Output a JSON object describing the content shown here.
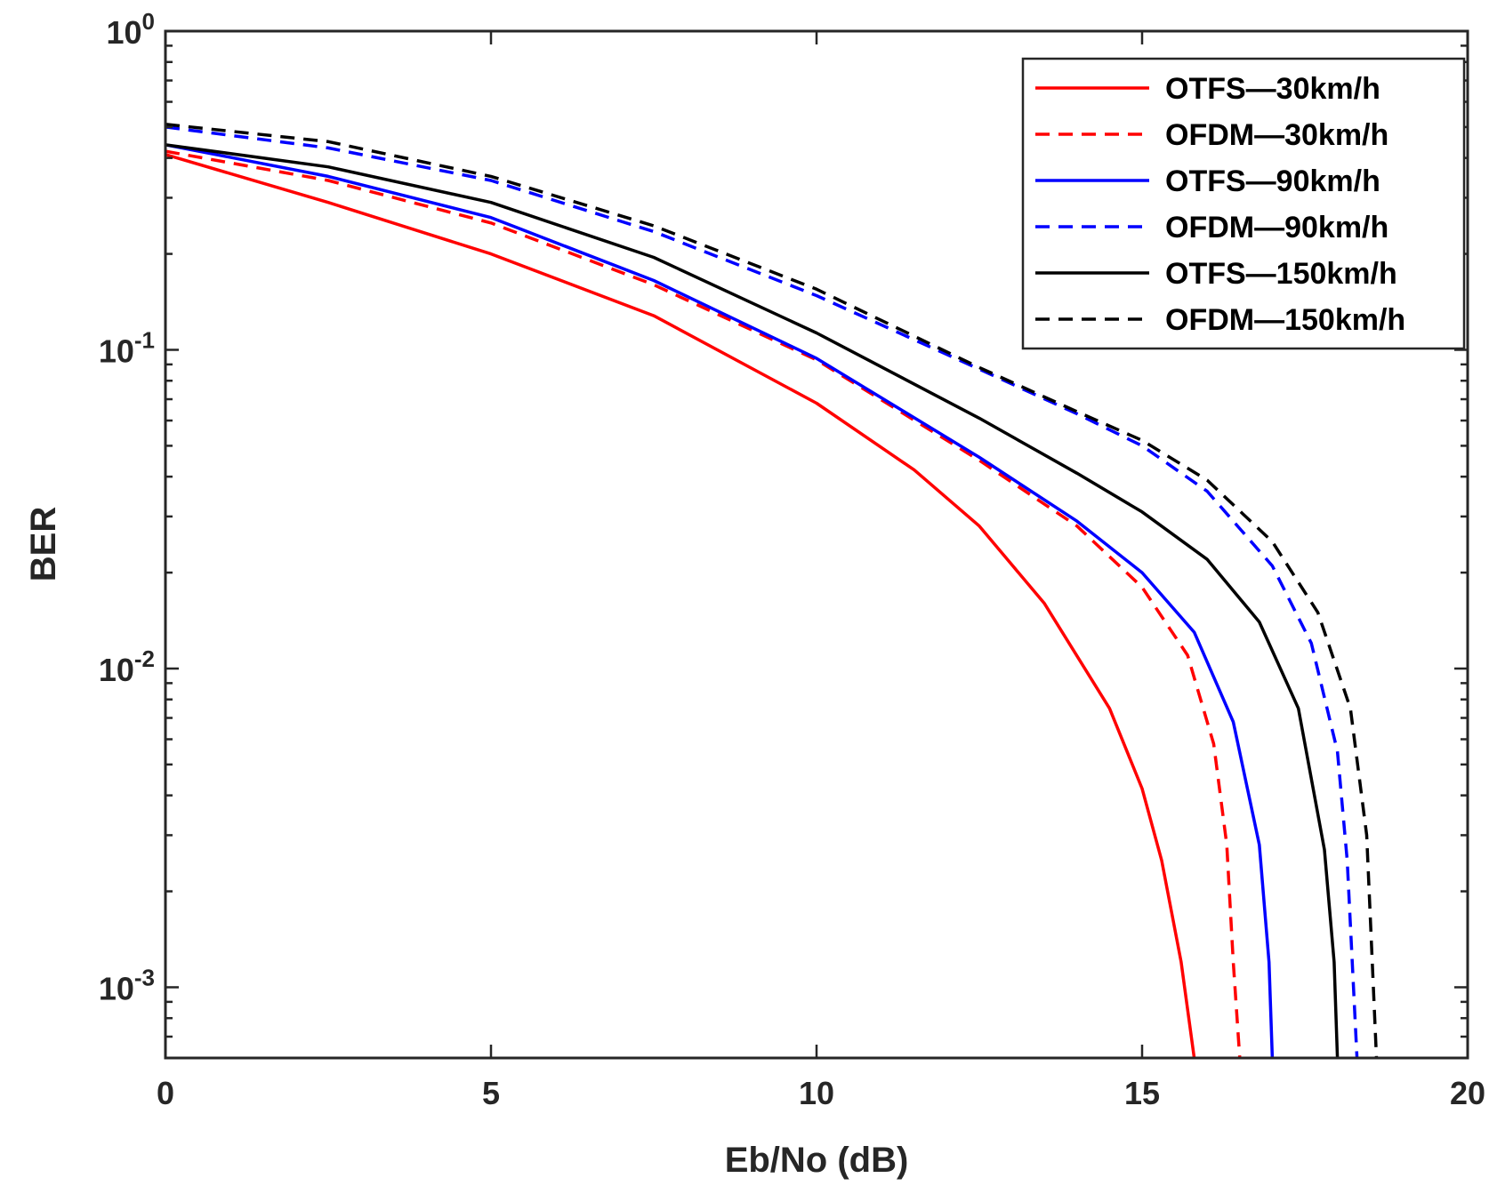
{
  "chart_data": {
    "type": "line",
    "title": "",
    "xlabel": "Eb/No (dB)",
    "ylabel": "BER",
    "xlim": [
      0,
      20
    ],
    "ylim": [
      0.0006,
      1
    ],
    "yscale": "log",
    "grid": false,
    "legend_position": "top-right",
    "x_ticks": [
      0,
      5,
      10,
      15,
      20
    ],
    "x_tick_labels": [
      "0",
      "5",
      "10",
      "15",
      "20"
    ],
    "y_ticks": [
      {
        "value": 1,
        "base": "10",
        "exp": "0"
      },
      {
        "value": 0.1,
        "base": "10",
        "exp": "-1"
      },
      {
        "value": 0.01,
        "base": "10",
        "exp": "-2"
      },
      {
        "value": 0.001,
        "base": "10",
        "exp": "-3"
      }
    ],
    "series": [
      {
        "name": "OTFS—30km/h",
        "color": "#ff0000",
        "dash": "solid",
        "x": [
          0,
          2.5,
          5,
          7.5,
          10,
          11.5,
          12.5,
          13.5,
          14.5,
          15,
          15.3,
          15.6,
          15.8
        ],
        "y": [
          0.41,
          0.29,
          0.2,
          0.128,
          0.068,
          0.042,
          0.028,
          0.016,
          0.0075,
          0.0042,
          0.0025,
          0.0012,
          0.0006
        ]
      },
      {
        "name": "OFDM—30km/h",
        "color": "#ff0000",
        "dash": "dashed",
        "x": [
          0,
          2.5,
          5,
          7.5,
          10,
          12.5,
          14,
          15,
          15.7,
          16.1,
          16.3,
          16.4,
          16.5
        ],
        "y": [
          0.42,
          0.34,
          0.25,
          0.16,
          0.093,
          0.045,
          0.028,
          0.018,
          0.011,
          0.0058,
          0.0028,
          0.0012,
          0.0006
        ]
      },
      {
        "name": "OTFS—90km/h",
        "color": "#0000ff",
        "dash": "solid",
        "x": [
          0,
          2.5,
          5,
          7.5,
          10,
          12.5,
          14,
          15,
          15.8,
          16.4,
          16.8,
          16.95,
          17.0
        ],
        "y": [
          0.44,
          0.35,
          0.26,
          0.165,
          0.094,
          0.046,
          0.029,
          0.02,
          0.013,
          0.0068,
          0.0028,
          0.0012,
          0.0006
        ]
      },
      {
        "name": "OFDM—90km/h",
        "color": "#0000ff",
        "dash": "dashed",
        "x": [
          0,
          2.5,
          5,
          7.5,
          10,
          12.5,
          14,
          15,
          16,
          17,
          17.6,
          18.0,
          18.15,
          18.3
        ],
        "y": [
          0.5,
          0.43,
          0.34,
          0.235,
          0.148,
          0.087,
          0.063,
          0.05,
          0.036,
          0.021,
          0.012,
          0.0055,
          0.0025,
          0.0006
        ]
      },
      {
        "name": "OTFS—150km/h",
        "color": "#000000",
        "dash": "solid",
        "x": [
          0,
          2.5,
          5,
          7.5,
          10,
          12.5,
          14,
          15,
          16,
          16.8,
          17.4,
          17.8,
          17.95,
          18.0
        ],
        "y": [
          0.44,
          0.375,
          0.29,
          0.195,
          0.113,
          0.061,
          0.041,
          0.031,
          0.022,
          0.014,
          0.0075,
          0.0027,
          0.0012,
          0.0006
        ]
      },
      {
        "name": "OFDM—150km/h",
        "color": "#000000",
        "dash": "dashed",
        "x": [
          0,
          2.5,
          5,
          7.5,
          10,
          12.5,
          14,
          15,
          16,
          17,
          17.7,
          18.2,
          18.45,
          18.6
        ],
        "y": [
          0.51,
          0.45,
          0.35,
          0.245,
          0.155,
          0.088,
          0.064,
          0.052,
          0.039,
          0.025,
          0.015,
          0.0075,
          0.003,
          0.0006
        ]
      }
    ]
  }
}
